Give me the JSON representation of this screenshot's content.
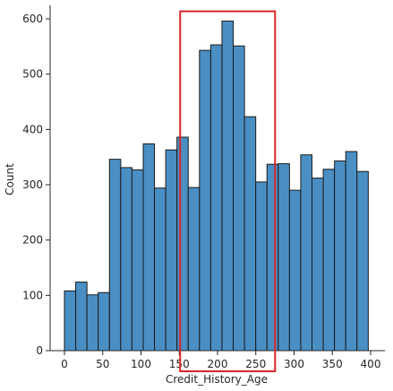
{
  "chart_data": {
    "type": "bar",
    "xlabel": "Credit_History_Age",
    "ylabel": "Count",
    "xlim": [
      -8,
      406
    ],
    "ylim": [
      0,
      625
    ],
    "x_ticks": [
      0,
      50,
      100,
      150,
      200,
      250,
      300,
      350,
      400
    ],
    "y_ticks": [
      0,
      100,
      200,
      300,
      400,
      500,
      600
    ],
    "bin_width": 14.7,
    "bin_start": 0,
    "values": [
      108,
      124,
      101,
      105,
      346,
      331,
      327,
      374,
      294,
      363,
      386,
      295,
      543,
      553,
      596,
      551,
      423,
      305,
      337,
      338,
      290,
      354,
      312,
      328,
      343,
      360,
      324
    ],
    "bar_color": "#4a8fc4",
    "bar_edge_color": "#1a1a1a",
    "highlight": {
      "x_range": [
        157,
        274
      ],
      "y_top": 612,
      "color": "#d62728"
    },
    "grid": false
  }
}
